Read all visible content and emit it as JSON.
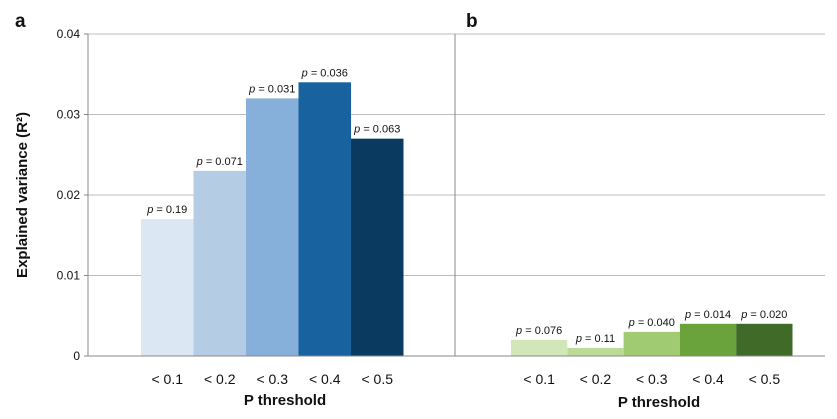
{
  "chart_data": [
    {
      "type": "bar",
      "panel_label": "a",
      "categories": [
        "< 0.1",
        "< 0.2",
        "< 0.3",
        "< 0.4",
        "< 0.5"
      ],
      "values": [
        0.017,
        0.023,
        0.032,
        0.034,
        0.027
      ],
      "annotations": [
        "p = 0.19",
        "p = 0.071",
        "p = 0.031",
        "p = 0.036",
        "p = 0.063"
      ],
      "colors": [
        "#dbe7f2",
        "#b4cde4",
        "#86b0d9",
        "#17629f",
        "#0b3a60"
      ],
      "xlabel": "P threshold",
      "ylabel": "Explained variance (R²)",
      "ylim": [
        0,
        0.04
      ],
      "yticks": [
        "0",
        "0.01",
        "0.02",
        "0.03",
        "0.04"
      ],
      "grid": true
    },
    {
      "type": "bar",
      "panel_label": "b",
      "categories": [
        "< 0.1",
        "< 0.2",
        "< 0.3",
        "< 0.4",
        "< 0.5"
      ],
      "values": [
        0.002,
        0.001,
        0.003,
        0.004,
        0.004
      ],
      "annotations": [
        "p = 0.076",
        "p = 0.11",
        "p = 0.040",
        "p = 0.014",
        "p = 0.020"
      ],
      "colors": [
        "#d2e6b8",
        "#bcdb97",
        "#a1cb72",
        "#6aa23c",
        "#3f6a28"
      ],
      "xlabel": "P  threshold",
      "ylim": [
        0,
        0.04
      ],
      "grid": true
    }
  ]
}
